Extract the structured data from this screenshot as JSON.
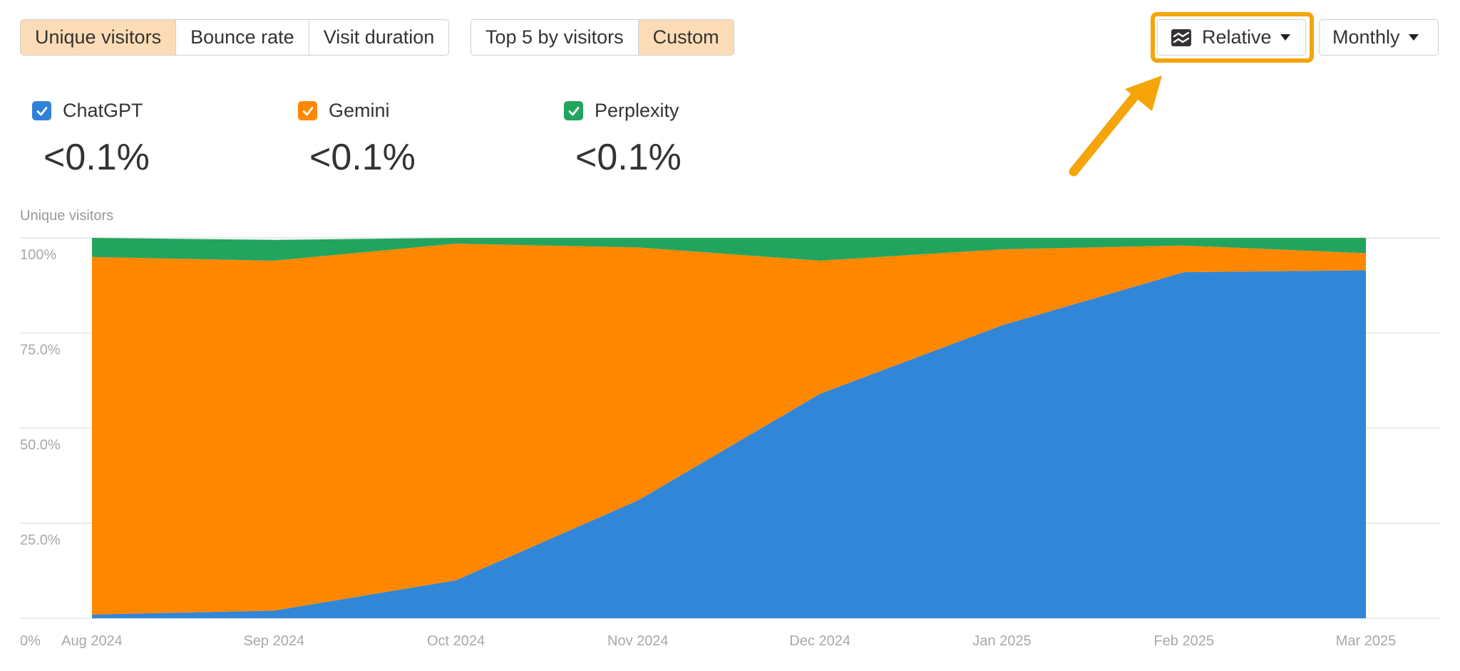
{
  "toolbar": {
    "metric_tabs": [
      "Unique visitors",
      "Bounce rate",
      "Visit duration"
    ],
    "preset_tabs": [
      "Top 5 by visitors",
      "Custom"
    ],
    "relative_label": "Relative",
    "period_label": "Monthly"
  },
  "legend": [
    {
      "name": "ChatGPT",
      "value": "<0.1%",
      "color": "#2f82d8"
    },
    {
      "name": "Gemini",
      "value": "<0.1%",
      "color": "#ff8800"
    },
    {
      "name": "Perplexity",
      "value": "<0.1%",
      "color": "#22a45f"
    }
  ],
  "colors": {
    "accent_active": "#fcdcb6",
    "highlight": "#f5a40a",
    "chatgpt": "#3286d8",
    "gemini": "#ff8800",
    "perplexity": "#22a45f"
  },
  "chart_data": {
    "type": "area",
    "stacked": true,
    "normalized": true,
    "ylabel": "Unique visitors",
    "ylim": [
      0,
      100
    ],
    "yticks": [
      "0%",
      "25.0%",
      "50.0%",
      "75.0%",
      "100%"
    ],
    "categories": [
      "Aug 2024",
      "Sep 2024",
      "Oct 2024",
      "Nov 2024",
      "Dec 2024",
      "Jan 2025",
      "Feb 2025",
      "Mar 2025"
    ],
    "series": [
      {
        "name": "ChatGPT",
        "color": "#3286d8",
        "values": [
          1,
          2,
          10,
          31,
          59,
          77,
          91,
          91.5
        ]
      },
      {
        "name": "Gemini",
        "color": "#ff8800",
        "values": [
          94,
          92,
          88.5,
          66.5,
          35,
          20,
          7,
          4.5
        ]
      },
      {
        "name": "Perplexity",
        "color": "#22a45f",
        "values": [
          5,
          5.5,
          1.5,
          2.5,
          6,
          3,
          2,
          4
        ]
      }
    ],
    "grid": true,
    "legend_position": "top-left"
  }
}
